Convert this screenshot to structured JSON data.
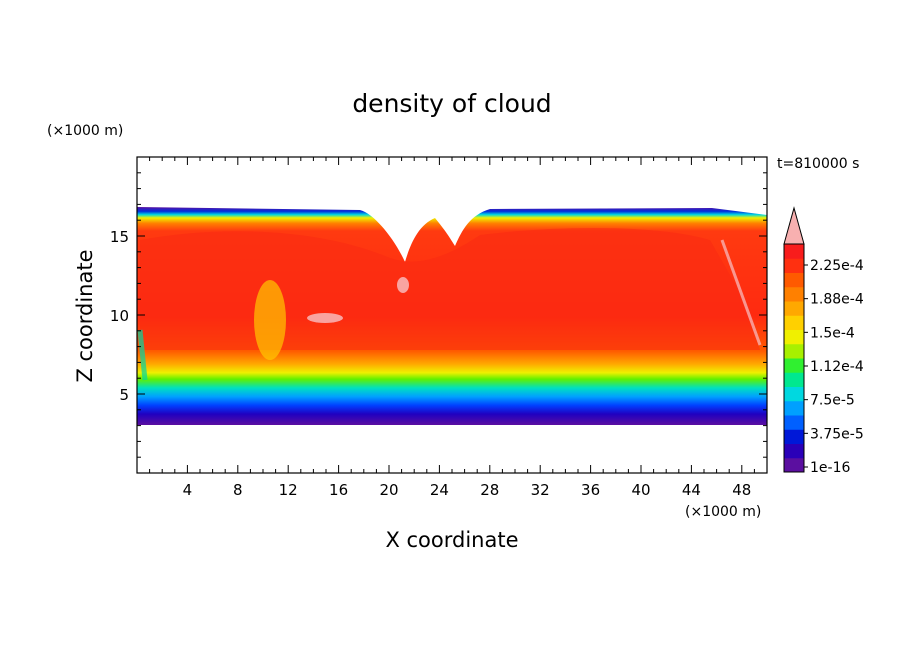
{
  "chart_data": {
    "type": "heatmap",
    "title": "density of cloud",
    "xlabel": "X coordinate",
    "ylabel": "Z coordinate",
    "x_unit": "(×1000 m)",
    "y_unit": "(×1000 m)",
    "time_label": "t=810000 s",
    "xlim": [
      0,
      50
    ],
    "ylim": [
      0,
      20
    ],
    "x_ticks": [
      4,
      8,
      12,
      16,
      20,
      24,
      28,
      32,
      36,
      40,
      44,
      48
    ],
    "y_ticks": [
      5,
      10,
      15
    ],
    "colorbar_labels": [
      "2.25e-4",
      "1.88e-4",
      "1.5e-4",
      "1.12e-4",
      "7.5e-5",
      "3.75e-5",
      "1e-16"
    ],
    "colorbar_colors": [
      "#5b0fa0",
      "#2a00b8",
      "#0018d8",
      "#0060ff",
      "#00a0ff",
      "#00d8e0",
      "#00e890",
      "#30f030",
      "#a8f000",
      "#f0f000",
      "#ffd000",
      "#ffa800",
      "#ff8000",
      "#ff5a00",
      "#ff3010",
      "#f81c1c",
      "#f8b0b0"
    ],
    "cloud_region": {
      "x_range": [
        0,
        50
      ],
      "base_z": 3.5,
      "top_z": 16.7,
      "core_range_z": [
        6,
        15
      ],
      "core_value": "2.25e-4",
      "note_values": "max in core, decreasing toward base and top"
    }
  }
}
